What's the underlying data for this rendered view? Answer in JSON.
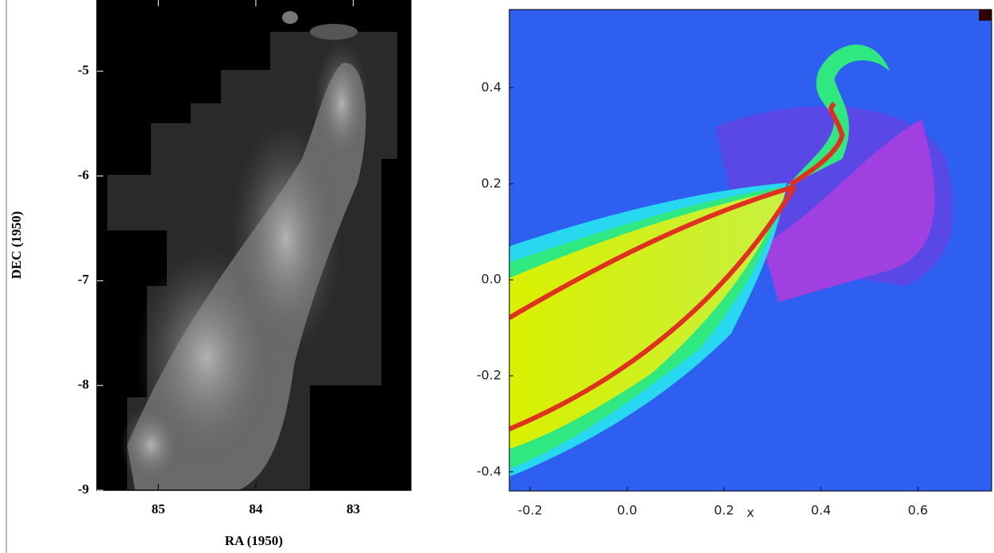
{
  "chart_data": [
    {
      "type": "image",
      "xlabel": "RA (1950)",
      "ylabel": "DEC (1950)",
      "xlim": [
        85.63,
        82.41
      ],
      "ylim": [
        -9,
        -4.32
      ],
      "xticks": [
        85,
        84,
        83
      ],
      "yticks": [
        -9,
        -8,
        -7,
        -6,
        -5
      ]
    },
    {
      "type": "image",
      "xlabel": "x",
      "xlim": [
        -0.243,
        0.752
      ],
      "ylim": [
        -0.44,
        0.563
      ],
      "xticks": [
        -0.2,
        {
          "value": 0,
          "label": "0.0"
        },
        0.2,
        0.4,
        0.6
      ],
      "yticks": [
        -0.4,
        -0.2,
        {
          "value": 0,
          "label": "0.0"
        },
        0.2,
        0.4
      ]
    }
  ]
}
